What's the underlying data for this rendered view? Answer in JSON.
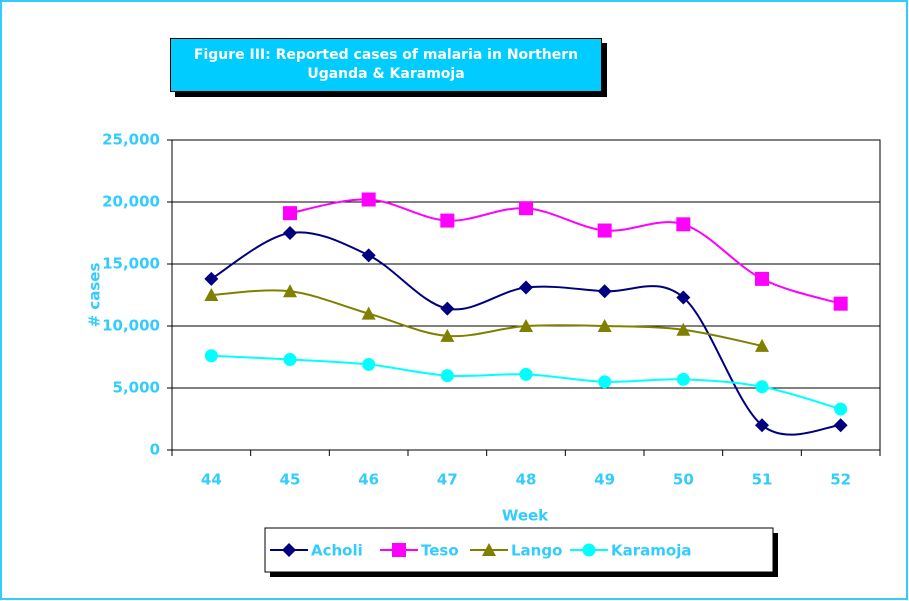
{
  "chart_data": {
    "type": "line",
    "title": "Figure III: Reported cases of malaria in Northern Uganda & Karamoja",
    "x_label": "Week",
    "y_label": "# cases",
    "categories": [
      "44",
      "45",
      "46",
      "47",
      "48",
      "49",
      "50",
      "51",
      "52"
    ],
    "series": [
      {
        "name": "Acholi",
        "color": "#000080",
        "marker": "diamond",
        "values": [
          13800,
          17500,
          15700,
          11400,
          13100,
          12800,
          12300,
          2000,
          2000
        ]
      },
      {
        "name": "Teso",
        "color": "#ff00ff",
        "marker": "square",
        "values": [
          null,
          19100,
          20200,
          18500,
          19500,
          17700,
          18200,
          13800,
          11800
        ]
      },
      {
        "name": "Lango",
        "color": "#808000",
        "marker": "triangle",
        "values": [
          12500,
          12800,
          11000,
          9200,
          10000,
          10000,
          9700,
          8400,
          null
        ]
      },
      {
        "name": "Karamoja",
        "color": "#00ffff",
        "marker": "circle",
        "values": [
          7600,
          7300,
          6900,
          6000,
          6100,
          5500,
          5700,
          5100,
          3300
        ]
      }
    ],
    "ylim": [
      0,
      25000
    ],
    "yticks": [
      0,
      {
        "value": 5000,
        "label": "5,000"
      },
      {
        "value": 10000,
        "label": "10,000"
      },
      {
        "value": 15000,
        "label": "15,000"
      },
      {
        "value": 20000,
        "label": "20,000"
      },
      {
        "value": 25000,
        "label": "25,000"
      }
    ],
    "grid": true,
    "smooth": true,
    "legend": "bottom"
  }
}
